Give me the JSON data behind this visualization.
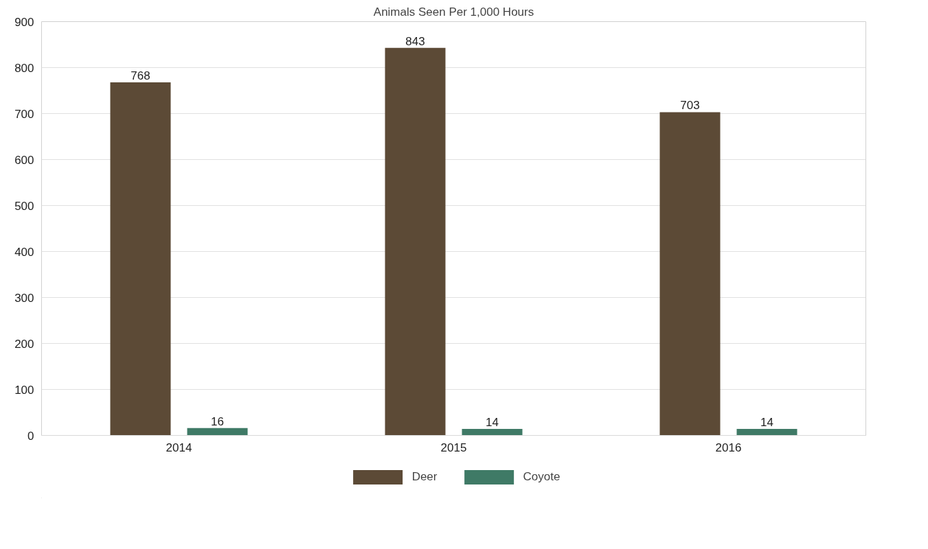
{
  "chart_data": {
    "type": "bar",
    "title": "Animals Seen Per 1,000 Hours",
    "categories": [
      "2014",
      "2015",
      "2016"
    ],
    "series": [
      {
        "name": "Deer",
        "color": "#5c4a36",
        "values": [
          768,
          843,
          703
        ]
      },
      {
        "name": "Coyote",
        "color": "#3f7a66",
        "values": [
          16,
          14,
          14
        ]
      }
    ],
    "ylim": [
      0,
      900
    ],
    "yticks": [
      0,
      100,
      200,
      300,
      400,
      500,
      600,
      700,
      800,
      900
    ],
    "grid": "y",
    "legend": "bottom",
    "data_labels": true
  }
}
